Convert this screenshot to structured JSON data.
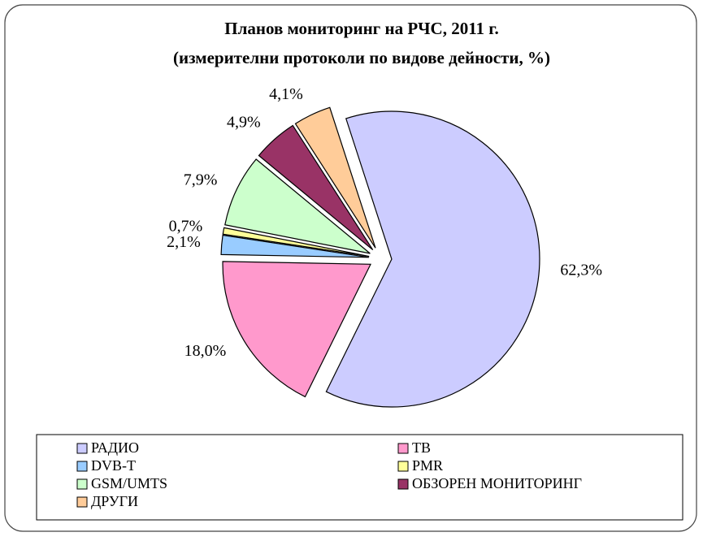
{
  "chart_data": {
    "type": "pie",
    "title": "Планов мониторинг на РЧС, 2011 г.",
    "subtitle": "(измерителни протоколи по видове дейности, %)",
    "categories": [
      "РАДИО",
      "ТВ",
      "DVB-T",
      "PMR",
      "GSM/UMTS",
      "ОБЗОРЕН МОНИТОРИНГ",
      "ДРУГИ"
    ],
    "values": [
      62.3,
      18.0,
      2.1,
      0.7,
      7.9,
      4.9,
      4.1
    ],
    "value_labels": [
      "62,3%",
      "18,0%",
      "2,1%",
      "0,7%",
      "7,9%",
      "4,9%",
      "4,1%"
    ],
    "colors": [
      "#ccccff",
      "#ff99cc",
      "#99ccff",
      "#ffff99",
      "#ccffcc",
      "#993366",
      "#ffcc99"
    ]
  }
}
